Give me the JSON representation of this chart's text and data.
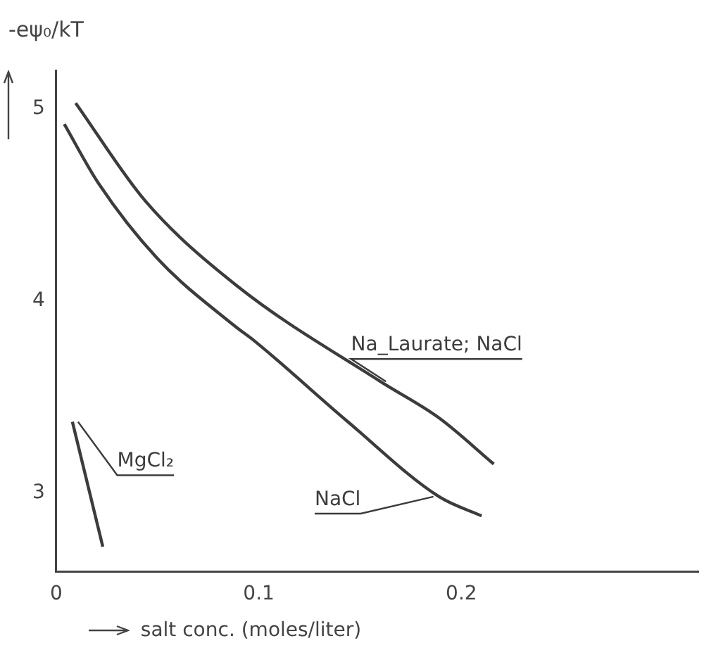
{
  "chart_data": {
    "type": "line",
    "ylabel": "-eψ₀/kT",
    "xlabel": "salt conc. (moles/liter)",
    "xlim": [
      0,
      0.317
    ],
    "xticks": [
      0,
      0.1,
      0.2
    ],
    "ylim": [
      2.59,
      5.2
    ],
    "yticks": [
      3,
      4,
      5
    ],
    "grid": false,
    "legend": false,
    "marker": "none",
    "line_style": "solid",
    "series": [
      {
        "name": "Na_Laurate; NaCl",
        "color": "#3c3c3c",
        "x": [
          0.0096,
          0.044,
          0.089,
          0.16,
          0.189,
          0.216
        ],
        "values": [
          5.03,
          4.52,
          4.08,
          3.58,
          3.39,
          3.15
        ]
      },
      {
        "name": "NaCl",
        "color": "#3c3c3c",
        "x": [
          0.004,
          0.021,
          0.05,
          0.088,
          0.098,
          0.144,
          0.189,
          0.21
        ],
        "values": [
          4.92,
          4.61,
          4.22,
          3.87,
          3.79,
          3.37,
          2.98,
          2.88
        ]
      },
      {
        "name": "MgCl₂",
        "color": "#3c3c3c",
        "x": [
          0.008,
          0.023
        ],
        "values": [
          3.37,
          2.72
        ]
      }
    ]
  }
}
